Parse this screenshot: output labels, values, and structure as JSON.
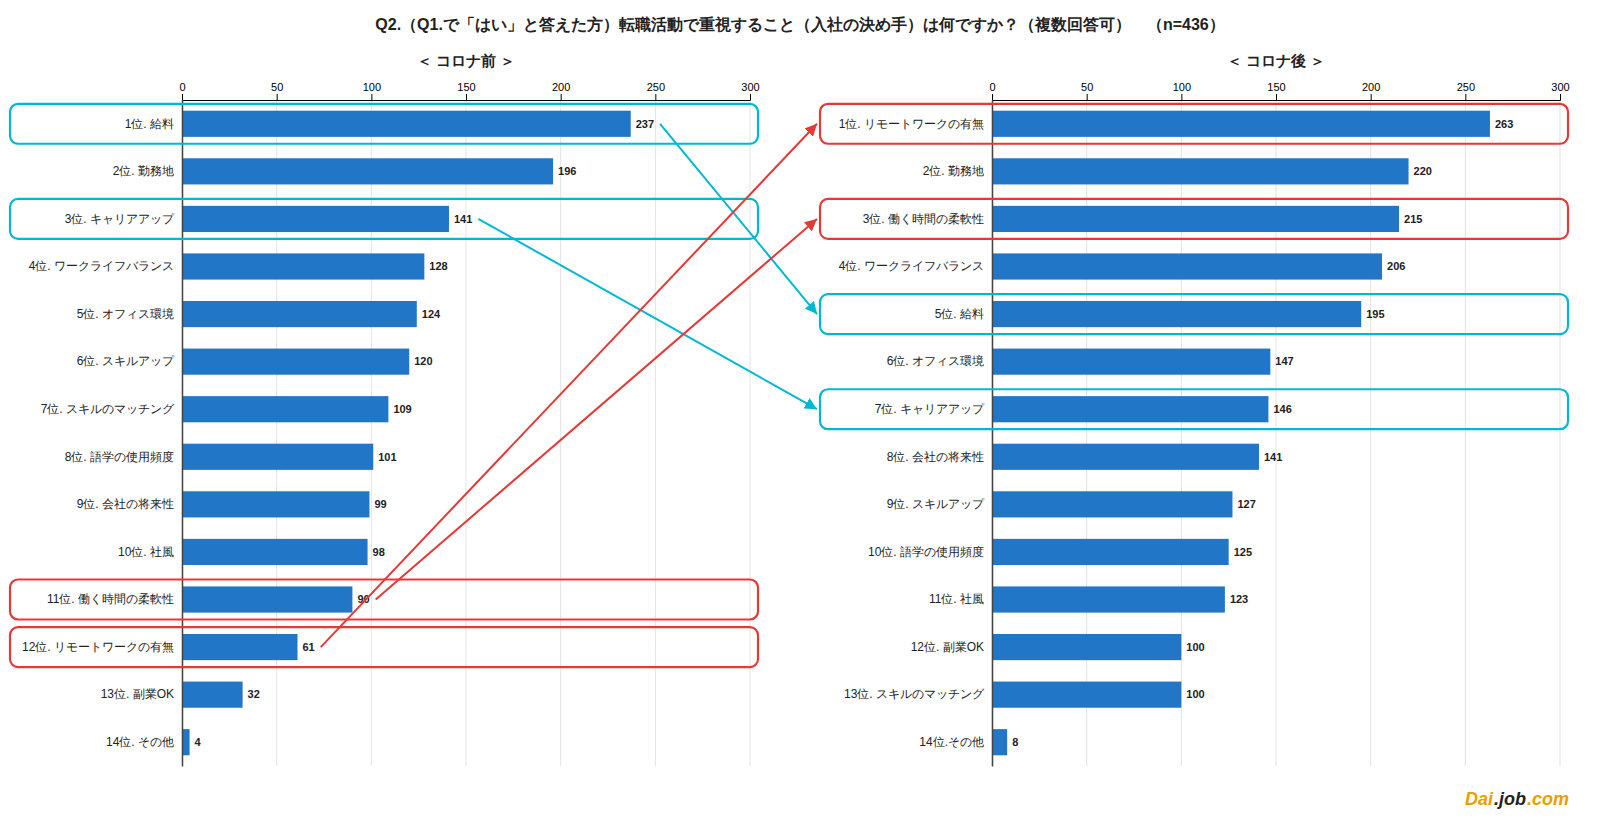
{
  "title": "Q2.（Q1.で「はい」と答えた方）転職活動で重視すること（入社の決め手）は何ですか？（複数回答可）　（n=436）",
  "annotations": [
    {
      "text": "Dai",
      "color": "#e8a000"
    },
    {
      "text": ".job",
      "color": "#222222"
    },
    {
      "text": ".com",
      "color": "#e8a000"
    }
  ],
  "arrows": [
    {
      "from": 0,
      "to": 4,
      "color": "#00b8d4"
    },
    {
      "from": 2,
      "to": 6,
      "color": "#00b8d4"
    },
    {
      "from": 10,
      "to": 2,
      "color": "#e53935"
    },
    {
      "from": 11,
      "to": 0,
      "color": "#e53935"
    }
  ],
  "chart_data": [
    {
      "type": "bar",
      "orientation": "horizontal",
      "title": "＜ コロナ前 ＞",
      "categories": [
        "1位. 給料",
        "2位. 勤務地",
        "3位. キャリアアップ",
        "4位. ワークライフバランス",
        "5位. オフィス環境",
        "6位. スキルアップ",
        "7位. スキルのマッチング",
        "8位. 語学の使用頻度",
        "9位. 会社の将来性",
        "10位. 社風",
        "11位. 働く時間の柔軟性",
        "12位. リモートワークの有無",
        "13位. 副業OK",
        "14位. その他"
      ],
      "values": [
        237,
        196,
        141,
        128,
        124,
        120,
        109,
        101,
        99,
        98,
        90,
        61,
        32,
        4
      ],
      "color": "#2176c7",
      "xlim": [
        0,
        300
      ],
      "xticks": [
        0,
        50,
        100,
        150,
        200,
        250,
        300
      ],
      "grid": true,
      "data_labels": true,
      "highlights": [
        {
          "index": 0,
          "color": "#00b8d4"
        },
        {
          "index": 2,
          "color": "#00b8d4"
        },
        {
          "index": 10,
          "color": "#e53935"
        },
        {
          "index": 11,
          "color": "#e53935"
        }
      ]
    },
    {
      "type": "bar",
      "orientation": "horizontal",
      "title": "＜ コロナ後 ＞",
      "categories": [
        "1位. リモートワークの有無",
        "2位. 勤務地",
        "3位. 働く時間の柔軟性",
        "4位. ワークライフバランス",
        "5位. 給料",
        "6位. オフィス環境",
        "7位. キャリアアップ",
        "8位. 会社の将来性",
        "9位. スキルアップ",
        "10位. 語学の使用頻度",
        "11位. 社風",
        "12位. 副業OK",
        "13位. スキルのマッチング",
        "14位.その他"
      ],
      "values": [
        263,
        220,
        215,
        206,
        195,
        147,
        146,
        141,
        127,
        125,
        123,
        100,
        100,
        8
      ],
      "color": "#2176c7",
      "xlim": [
        0,
        300
      ],
      "xticks": [
        0,
        50,
        100,
        150,
        200,
        250,
        300
      ],
      "grid": true,
      "data_labels": true,
      "highlights": [
        {
          "index": 0,
          "color": "#e53935"
        },
        {
          "index": 2,
          "color": "#e53935"
        },
        {
          "index": 4,
          "color": "#00b8d4"
        },
        {
          "index": 6,
          "color": "#00b8d4"
        }
      ]
    }
  ]
}
